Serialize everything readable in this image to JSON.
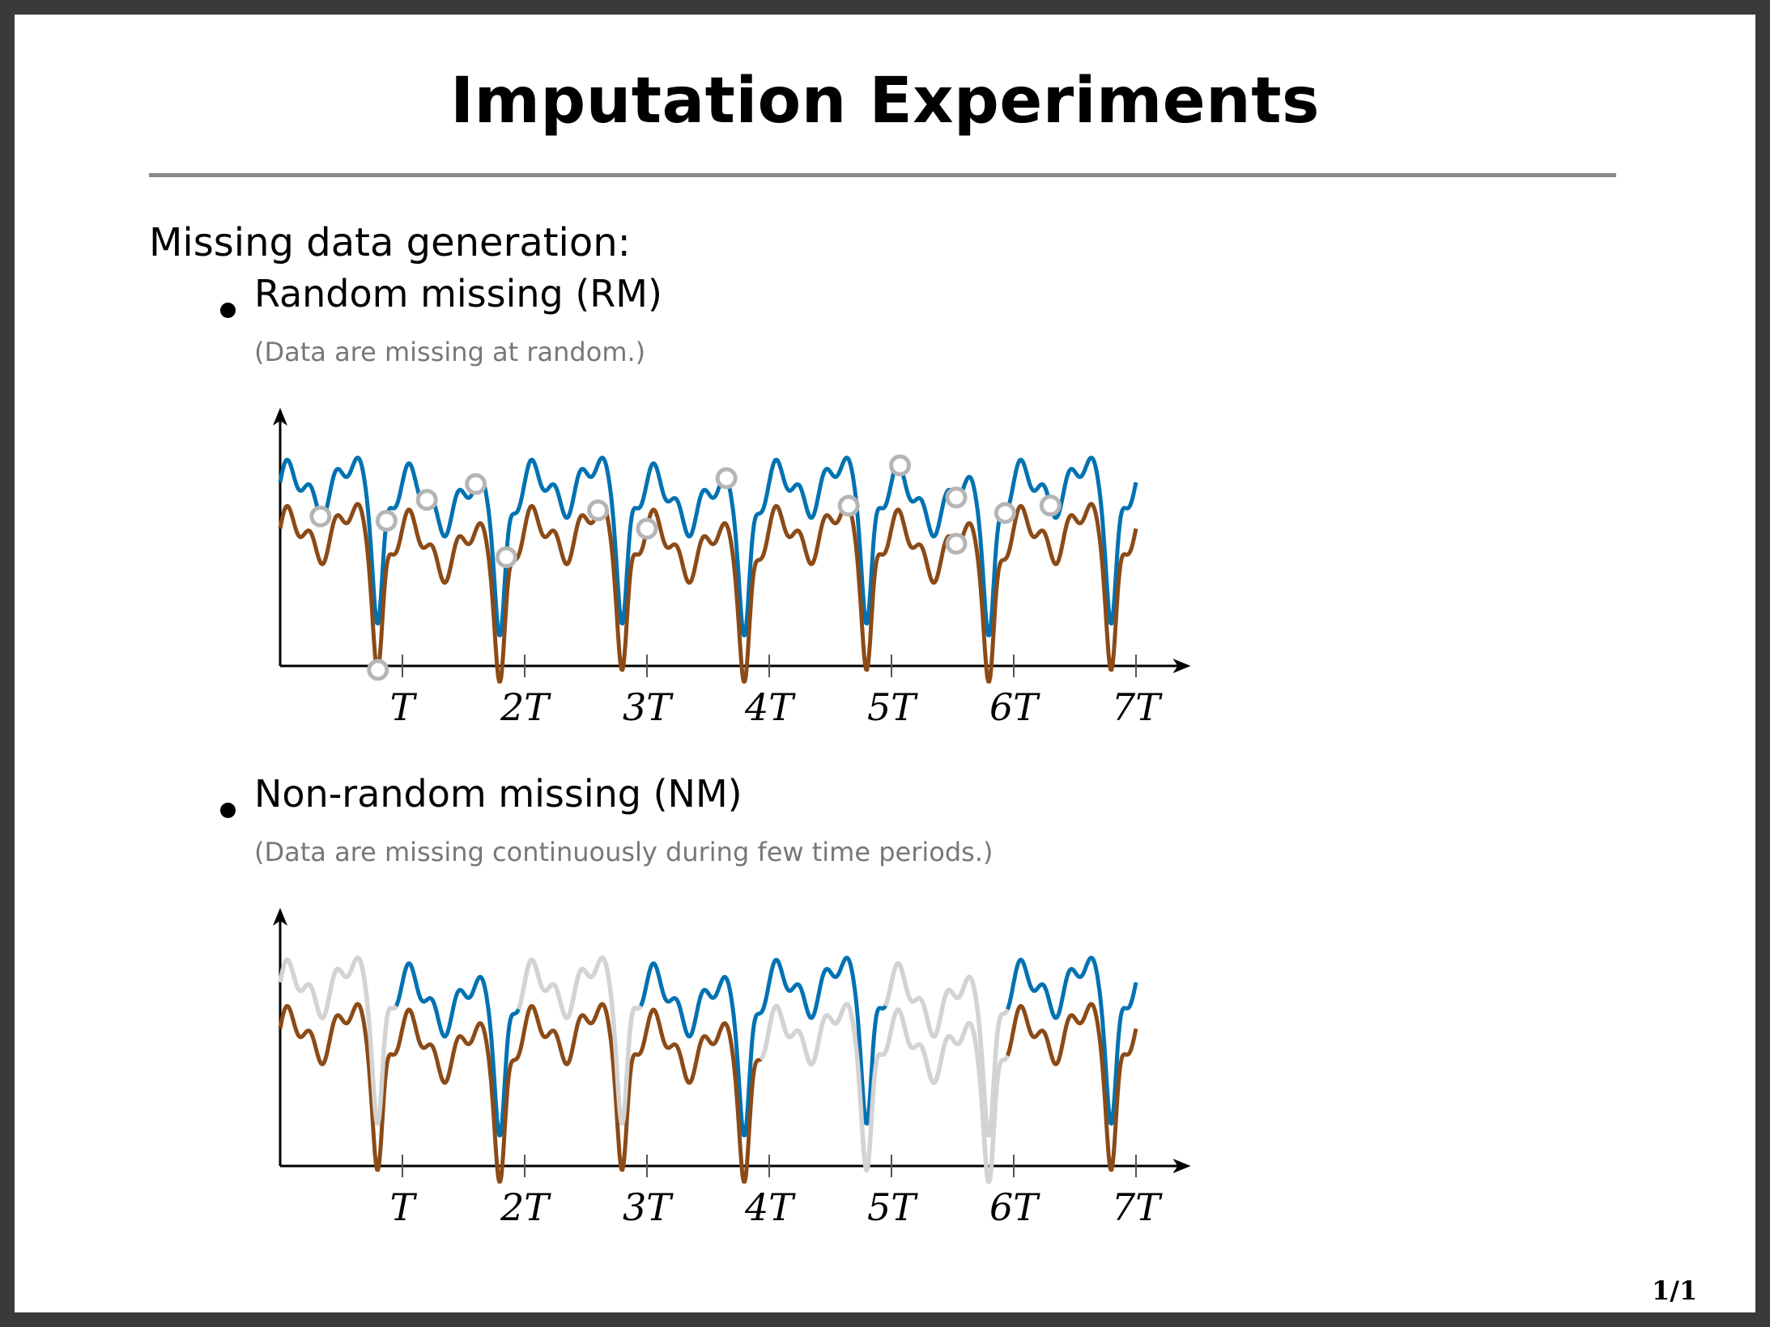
{
  "slide": {
    "title": "Imputation Experiments",
    "section_heading": "Missing data generation:",
    "page_number": "1/1"
  },
  "bullets": [
    {
      "label": "Random missing (RM)",
      "note": "(Data are missing at random.)"
    },
    {
      "label": "Non-random missing (NM)",
      "note": "(Data are missing continuously during few time periods.)"
    }
  ],
  "colors": {
    "series_blue": "#0072B2",
    "series_brown": "#8B4A16",
    "missing_marker": "#b5b5b5",
    "missing_segment": "#d3d3d3"
  },
  "chart_data": [
    {
      "type": "line",
      "title": "",
      "xlabel": "",
      "ylabel": "",
      "xlim": [
        0,
        7.5
      ],
      "ylim": [
        0,
        1
      ],
      "ticks": [
        {
          "label": "T",
          "value": 1
        },
        {
          "label": "2T",
          "value": 2
        },
        {
          "label": "3T",
          "value": 3
        },
        {
          "label": "4T",
          "value": 4
        },
        {
          "label": "5T",
          "value": 5
        },
        {
          "label": "6T",
          "value": 6
        },
        {
          "label": "7T",
          "value": 7
        }
      ],
      "series": [
        {
          "color": "#0072B2",
          "offset": 0.0
        },
        {
          "color": "#8B4A16",
          "offset": -0.22
        }
      ],
      "missing": {
        "kind": "random points",
        "points": [
          {
            "series": 0,
            "x": 0.33
          },
          {
            "series": 1,
            "x": 0.8
          },
          {
            "series": 0,
            "x": 0.87
          },
          {
            "series": 0,
            "x": 1.2
          },
          {
            "series": 0,
            "x": 1.6
          },
          {
            "series": 0,
            "x": 1.85
          },
          {
            "series": 1,
            "x": 2.6
          },
          {
            "series": 1,
            "x": 3.0
          },
          {
            "series": 0,
            "x": 3.65
          },
          {
            "series": 1,
            "x": 4.65
          },
          {
            "series": 0,
            "x": 5.07
          },
          {
            "series": 0,
            "x": 5.53
          },
          {
            "series": 1,
            "x": 5.53
          },
          {
            "series": 0,
            "x": 5.93
          },
          {
            "series": 0,
            "x": 6.3
          }
        ]
      }
    },
    {
      "type": "line",
      "title": "",
      "xlabel": "",
      "ylabel": "",
      "xlim": [
        0,
        7.5
      ],
      "ylim": [
        0,
        1
      ],
      "ticks": [
        {
          "label": "T",
          "value": 1
        },
        {
          "label": "2T",
          "value": 2
        },
        {
          "label": "3T",
          "value": 3
        },
        {
          "label": "4T",
          "value": 4
        },
        {
          "label": "5T",
          "value": 5
        },
        {
          "label": "6T",
          "value": 6
        },
        {
          "label": "7T",
          "value": 7
        }
      ],
      "series": [
        {
          "color": "#0072B2",
          "offset": 0.0
        },
        {
          "color": "#8B4A16",
          "offset": -0.22
        }
      ],
      "missing": {
        "kind": "continuous intervals",
        "intervals": [
          {
            "series": 0,
            "start": 0.0,
            "end": 0.95
          },
          {
            "series": 0,
            "start": 1.95,
            "end": 2.95
          },
          {
            "series": 1,
            "start": 3.93,
            "end": 5.95
          },
          {
            "series": 0,
            "start": 4.95,
            "end": 5.95
          }
        ]
      }
    }
  ]
}
